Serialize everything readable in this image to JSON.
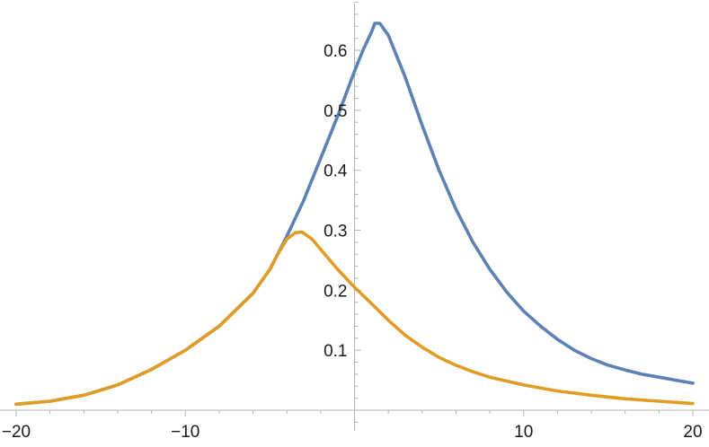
{
  "chart_data": {
    "type": "line",
    "title": "",
    "xlabel": "",
    "ylabel": "",
    "xlim": [
      -20,
      20
    ],
    "ylim": [
      0,
      0.65
    ],
    "grid": false,
    "x_ticks": [
      {
        "value": -20,
        "label": "−20"
      },
      {
        "value": -10,
        "label": "−10"
      },
      {
        "value": 10,
        "label": "10"
      },
      {
        "value": 20,
        "label": "20"
      }
    ],
    "y_ticks": [
      {
        "value": 0.1,
        "label": "0.1"
      },
      {
        "value": 0.2,
        "label": "0.2"
      },
      {
        "value": 0.3,
        "label": "0.3"
      },
      {
        "value": 0.4,
        "label": "0.4"
      },
      {
        "value": 0.5,
        "label": "0.5"
      },
      {
        "value": 0.6,
        "label": "0.6"
      }
    ],
    "series": [
      {
        "color": "#5e81b5",
        "points": [
          [
            -20,
            0.01
          ],
          [
            -18,
            0.015
          ],
          [
            -16,
            0.025
          ],
          [
            -14,
            0.042
          ],
          [
            -12,
            0.068
          ],
          [
            -10,
            0.1
          ],
          [
            -8,
            0.14
          ],
          [
            -6,
            0.195
          ],
          [
            -5,
            0.235
          ],
          [
            -4,
            0.29
          ],
          [
            -3,
            0.35
          ],
          [
            -2,
            0.42
          ],
          [
            -1,
            0.49
          ],
          [
            0,
            0.565
          ],
          [
            0.5,
            0.6
          ],
          [
            1,
            0.63
          ],
          [
            1.2,
            0.645
          ],
          [
            1.5,
            0.645
          ],
          [
            2,
            0.625
          ],
          [
            3,
            0.555
          ],
          [
            4,
            0.475
          ],
          [
            5,
            0.4
          ],
          [
            6,
            0.335
          ],
          [
            7,
            0.28
          ],
          [
            8,
            0.235
          ],
          [
            9,
            0.197
          ],
          [
            10,
            0.165
          ],
          [
            11,
            0.14
          ],
          [
            12,
            0.118
          ],
          [
            13,
            0.1
          ],
          [
            14,
            0.086
          ],
          [
            15,
            0.075
          ],
          [
            16,
            0.067
          ],
          [
            17,
            0.06
          ],
          [
            18,
            0.055
          ],
          [
            19,
            0.05
          ],
          [
            20,
            0.045
          ]
        ]
      },
      {
        "color": "#e19c24",
        "points": [
          [
            -20,
            0.01
          ],
          [
            -18,
            0.015
          ],
          [
            -16,
            0.025
          ],
          [
            -14,
            0.042
          ],
          [
            -12,
            0.068
          ],
          [
            -10,
            0.1
          ],
          [
            -8,
            0.14
          ],
          [
            -6,
            0.195
          ],
          [
            -5,
            0.235
          ],
          [
            -4.5,
            0.262
          ],
          [
            -4,
            0.285
          ],
          [
            -3.5,
            0.296
          ],
          [
            -3.1,
            0.297
          ],
          [
            -2.5,
            0.285
          ],
          [
            -2,
            0.268
          ],
          [
            -1,
            0.235
          ],
          [
            0,
            0.205
          ],
          [
            1,
            0.178
          ],
          [
            2,
            0.15
          ],
          [
            3,
            0.125
          ],
          [
            4,
            0.105
          ],
          [
            5,
            0.088
          ],
          [
            6,
            0.075
          ],
          [
            7,
            0.064
          ],
          [
            8,
            0.055
          ],
          [
            10,
            0.042
          ],
          [
            12,
            0.032
          ],
          [
            14,
            0.025
          ],
          [
            16,
            0.019
          ],
          [
            18,
            0.015
          ],
          [
            20,
            0.011
          ]
        ]
      }
    ]
  }
}
